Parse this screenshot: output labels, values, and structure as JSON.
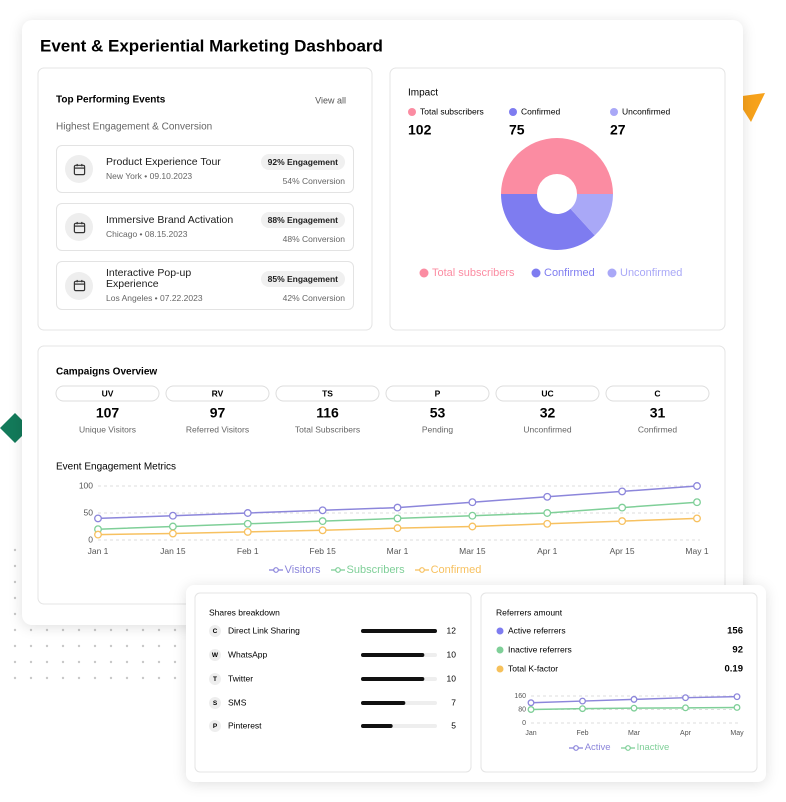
{
  "header": {
    "title": "Event & Experiential Marketing Dashboard"
  },
  "top_events": {
    "title": "Top Performing Events",
    "link": "View all",
    "subtitle": "Highest Engagement & Conversion",
    "items": [
      {
        "name": "Product Experience Tour",
        "meta": "New York • 09.10.2023",
        "engagement": "92% Engagement",
        "conversion": "54% Conversion"
      },
      {
        "name": "Immersive Brand Activation",
        "meta": "Chicago • 08.15.2023",
        "engagement": "88% Engagement",
        "conversion": "48% Conversion"
      },
      {
        "name": "Interactive Pop-up Experience",
        "meta": "Los Angeles • 07.22.2023",
        "engagement": "85% Engagement",
        "conversion": "42% Conversion"
      }
    ]
  },
  "campaigns": {
    "title": "Campaigns Overview",
    "tiles": [
      {
        "code": "UV",
        "value": 107,
        "label": "Unique Visitors"
      },
      {
        "code": "RV",
        "value": 97,
        "label": "Referred Visitors"
      },
      {
        "code": "TS",
        "value": 116,
        "label": "Total Subscribers"
      },
      {
        "code": "P",
        "value": 53,
        "label": "Pending"
      },
      {
        "code": "UC",
        "value": 32,
        "label": "Unconfirmed"
      },
      {
        "code": "C",
        "value": 31,
        "label": "Confirmed"
      }
    ]
  },
  "chart_data": [
    {
      "type": "pie",
      "title": "Impact",
      "donut": true,
      "categories": [
        "Total subscribers",
        "Confirmed",
        "Unconfirmed"
      ],
      "values": [
        102,
        75,
        27
      ],
      "colors": [
        "#fb8ca2",
        "#7e7cf0",
        "#a9a8f7"
      ]
    },
    {
      "type": "line",
      "title": "Event Engagement Metrics",
      "categories": [
        "Jan 1",
        "Jan 15",
        "Feb 1",
        "Feb 15",
        "Mar 1",
        "Mar 15",
        "Apr 1",
        "Apr 15",
        "May 1"
      ],
      "ylim": [
        0,
        100
      ],
      "yticks": [
        0,
        50,
        100
      ],
      "grid": true,
      "series": [
        {
          "name": "Visitors",
          "color": "#8c86db",
          "values": [
            40,
            45,
            50,
            55,
            60,
            70,
            80,
            90,
            100
          ]
        },
        {
          "name": "Subscribers",
          "color": "#7fcf98",
          "values": [
            20,
            25,
            30,
            35,
            40,
            45,
            50,
            60,
            70
          ]
        },
        {
          "name": "Confirmed",
          "color": "#f7c160",
          "values": [
            10,
            12,
            15,
            18,
            22,
            25,
            30,
            35,
            40
          ]
        }
      ]
    },
    {
      "type": "line",
      "categories": [
        "Jan",
        "Feb",
        "Mar",
        "Apr",
        "May"
      ],
      "ylim": [
        0,
        160
      ],
      "yticks": [
        0,
        80,
        160
      ],
      "grid": true,
      "series": [
        {
          "name": "Active",
          "color": "#8c86db",
          "values": [
            120,
            130,
            140,
            150,
            156
          ]
        },
        {
          "name": "Inactive",
          "color": "#7fcf98",
          "values": [
            80,
            85,
            88,
            90,
            92
          ]
        }
      ]
    }
  ],
  "shares": {
    "title": "Shares breakdown",
    "items": [
      {
        "icon": "C",
        "name": "Direct Link Sharing",
        "value": 12
      },
      {
        "icon": "W",
        "name": "WhatsApp",
        "value": 10
      },
      {
        "icon": "T",
        "name": "Twitter",
        "value": 10
      },
      {
        "icon": "S",
        "name": "SMS",
        "value": 7
      },
      {
        "icon": "P",
        "name": "Pinterest",
        "value": 5
      }
    ]
  },
  "referrers": {
    "title": "Referrers amount",
    "items": [
      {
        "label": "Active referrers",
        "value": 156,
        "color": "#7e7cf0"
      },
      {
        "label": "Inactive referrers",
        "value": 92,
        "color": "#7fcf98"
      },
      {
        "label": "Total K-factor",
        "value": 0.19,
        "color": "#f6c15b"
      }
    ]
  }
}
